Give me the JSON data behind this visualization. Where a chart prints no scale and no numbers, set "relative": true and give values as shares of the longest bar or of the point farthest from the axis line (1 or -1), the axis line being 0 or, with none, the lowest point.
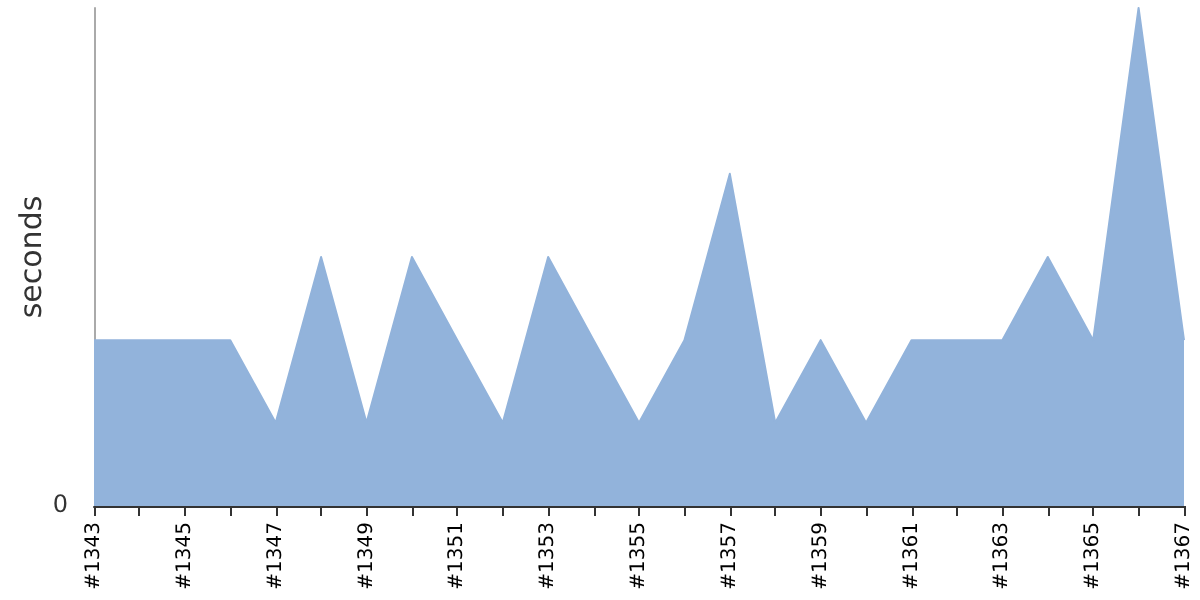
{
  "chart_data": {
    "type": "area",
    "ylabel": "seconds",
    "relative": true,
    "grid": false,
    "marker": "none",
    "categories": [
      "#1343",
      null,
      "#1345",
      null,
      "#1347",
      null,
      "#1349",
      null,
      "#1351",
      null,
      "#1353",
      null,
      "#1355",
      null,
      "#1357",
      null,
      "#1359",
      null,
      "#1361",
      null,
      "#1363",
      null,
      "#1365",
      null,
      "#1367"
    ],
    "series": [
      {
        "color": "#92b3db",
        "values": [
          0.333,
          0.333,
          0.333,
          0.333,
          0.167,
          0.5,
          0.167,
          0.5,
          0.333,
          0.167,
          0.5,
          0.333,
          0.167,
          0.333,
          0.667,
          0.167,
          0.333,
          0.167,
          0.333,
          0.333,
          0.333,
          0.5,
          0.333,
          1,
          0.333
        ]
      }
    ],
    "annotations": [
      "0"
    ]
  }
}
